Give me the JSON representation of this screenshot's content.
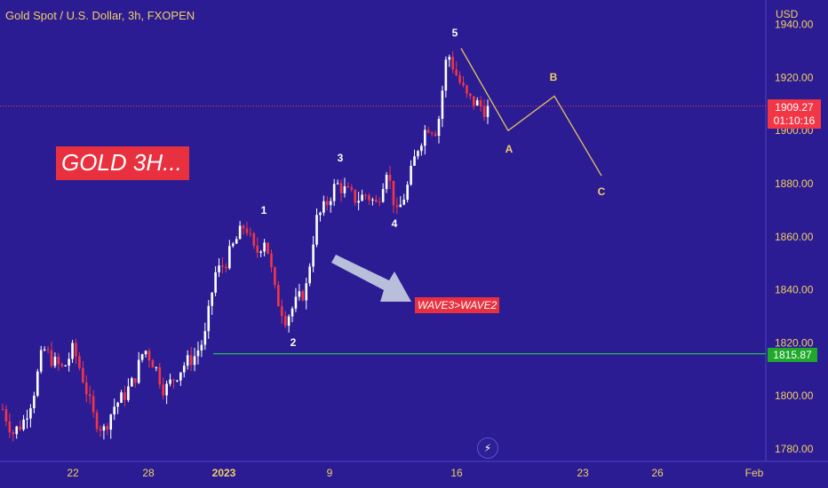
{
  "header": {
    "symbol": "Gold Spot / U.S. Dollar, 3h, FXOPEN",
    "currency": "USD"
  },
  "annotations": {
    "title_box": "GOLD 3H...",
    "wave_box": "WAVE3>WAVE2",
    "wave_numbers": [
      "1",
      "2",
      "3",
      "4",
      "5"
    ],
    "projection_letters": [
      "A",
      "B",
      "C"
    ]
  },
  "price_tag": {
    "price": "1909.27",
    "countdown": "01:10:16"
  },
  "level_tag": {
    "value": "1815.87"
  },
  "colors": {
    "background": "#2b1c93",
    "up_candle": "#ffffff",
    "down_candle": "#f23645",
    "axis_text": "#f2cf63",
    "projection_line": "#e6c25f",
    "support_line": "#26e33f",
    "price_line": "#f23645"
  },
  "icons": {
    "replay_button": "lightning-icon"
  },
  "chart_data": {
    "type": "candlestick",
    "title": "Gold Spot / U.S. Dollar, 3h, FXOPEN",
    "y_axis_label": "USD",
    "y_ticks": [
      "1780.00",
      "1800.00",
      "1820.00",
      "1840.00",
      "1860.00",
      "1880.00",
      "1900.00",
      "1920.00",
      "1940.00"
    ],
    "x_ticks": [
      "22",
      "28",
      "2023",
      "9",
      "16",
      "23",
      "26",
      "Feb"
    ],
    "ylim": [
      1772,
      1944
    ],
    "current_price": 1909.27,
    "support_level": 1815.87,
    "grid": false,
    "wave_points": [
      {
        "label": "1",
        "price": 1865
      },
      {
        "label": "2",
        "price": 1826
      },
      {
        "label": "3",
        "price": 1882
      },
      {
        "label": "4",
        "price": 1867
      },
      {
        "label": "5",
        "price": 1931
      }
    ],
    "projection": [
      {
        "label": "",
        "price": 1931
      },
      {
        "label": "A",
        "price": 1900
      },
      {
        "label": "B",
        "price": 1913
      },
      {
        "label": "C",
        "price": 1883
      }
    ],
    "path": [
      1795,
      1786,
      1790,
      1800,
      1818,
      1813,
      1810,
      1818,
      1806,
      1792,
      1787,
      1796,
      1800,
      1806,
      1818,
      1812,
      1802,
      1807,
      1812,
      1815,
      1822,
      1846,
      1850,
      1858,
      1865,
      1853,
      1860,
      1838,
      1829,
      1835,
      1840,
      1866,
      1872,
      1880,
      1877,
      1874,
      1876,
      1872,
      1886,
      1868,
      1878,
      1893,
      1902,
      1900,
      1930,
      1920,
      1912,
      1910,
      1907
    ]
  }
}
